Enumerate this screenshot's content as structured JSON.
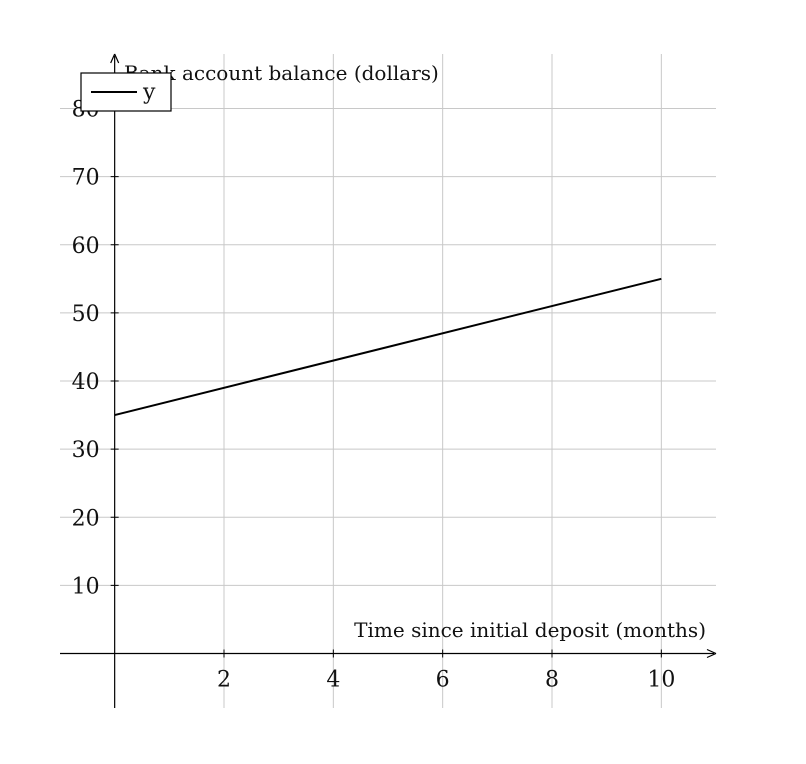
{
  "chart_data": {
    "type": "line",
    "title": "",
    "xlabel": "Time since initial deposit (months)",
    "ylabel": "Bank account balance (dollars)",
    "xlim": [
      -1,
      11
    ],
    "ylim": [
      -8,
      88
    ],
    "x_ticks": [
      2,
      4,
      6,
      8,
      10
    ],
    "y_ticks": [
      10,
      20,
      30,
      40,
      50,
      60,
      70,
      80
    ],
    "grid": true,
    "legend_position": "top-left",
    "series": [
      {
        "name": "y",
        "color": "#000000",
        "x": [
          0,
          10
        ],
        "y": [
          35,
          55
        ]
      }
    ]
  }
}
